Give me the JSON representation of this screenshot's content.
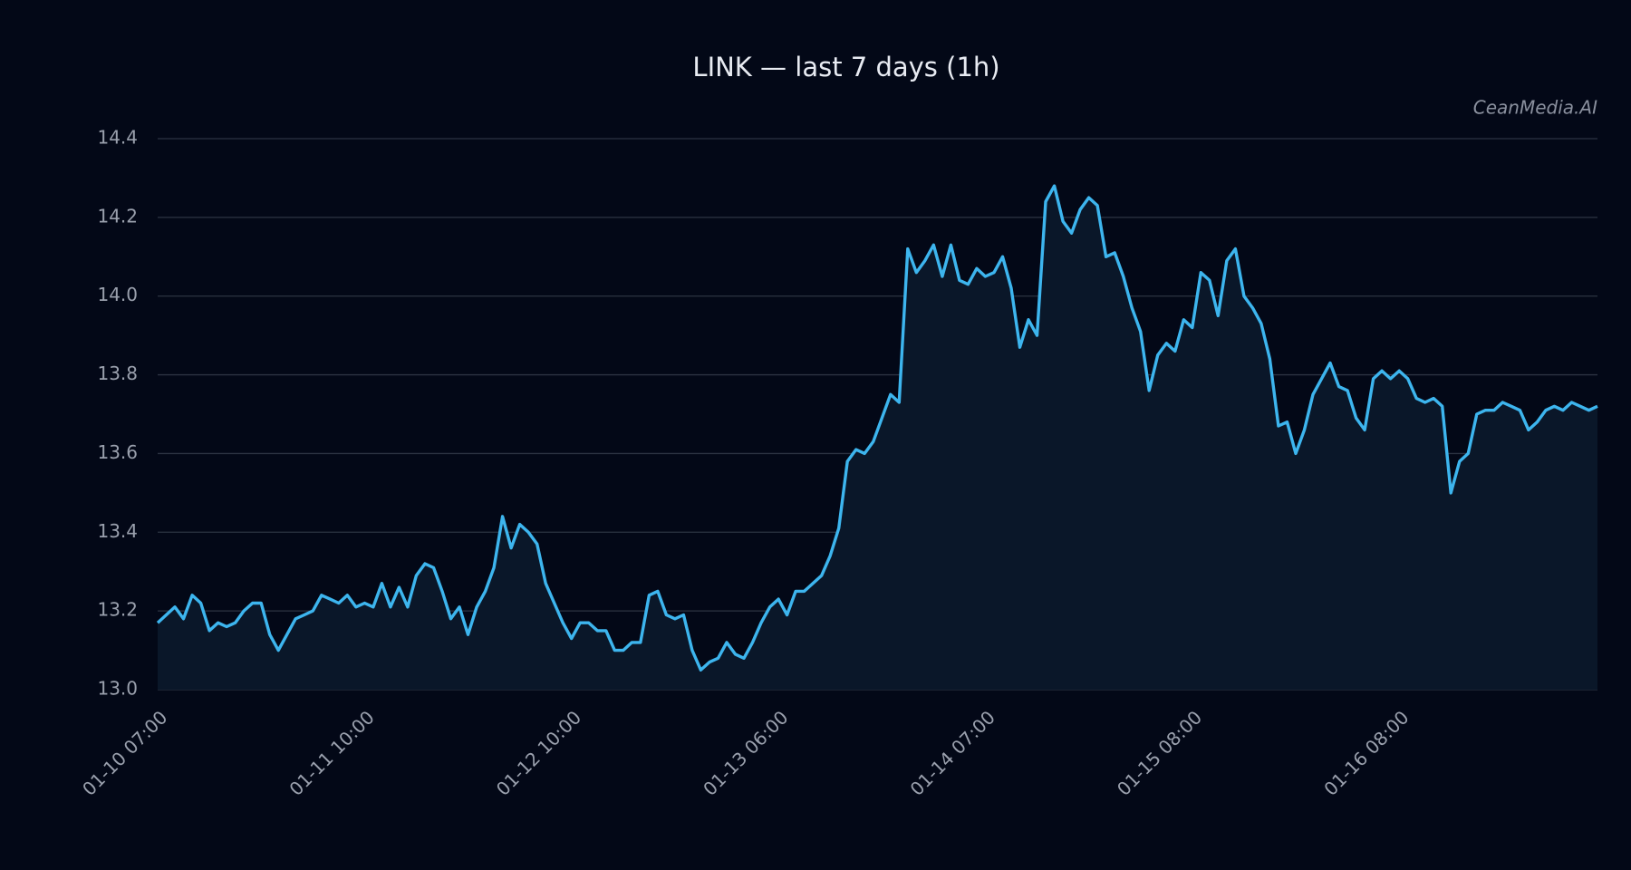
{
  "chart_data": {
    "type": "line",
    "title": "LINK — last 7 days (1h)",
    "watermark": "CeanMedia.AI",
    "categories": [
      "01-10 07:00",
      null,
      null,
      null,
      null,
      null,
      null,
      null,
      null,
      null,
      null,
      null,
      null,
      null,
      null,
      null,
      null,
      null,
      null,
      null,
      null,
      null,
      null,
      null,
      "01-11 10:00",
      null,
      null,
      null,
      null,
      null,
      null,
      null,
      null,
      null,
      null,
      null,
      null,
      null,
      null,
      null,
      null,
      null,
      null,
      null,
      null,
      null,
      null,
      null,
      "01-12 10:00",
      null,
      null,
      null,
      null,
      null,
      null,
      null,
      null,
      null,
      null,
      null,
      null,
      null,
      null,
      null,
      null,
      null,
      null,
      null,
      null,
      null,
      null,
      null,
      "01-13 06:00",
      null,
      null,
      null,
      null,
      null,
      null,
      null,
      null,
      null,
      null,
      null,
      null,
      null,
      null,
      null,
      null,
      null,
      null,
      null,
      null,
      null,
      null,
      null,
      "01-14 07:00",
      null,
      null,
      null,
      null,
      null,
      null,
      null,
      null,
      null,
      null,
      null,
      null,
      null,
      null,
      null,
      null,
      null,
      null,
      null,
      null,
      null,
      null,
      null,
      "01-15 08:00",
      null,
      null,
      null,
      null,
      null,
      null,
      null,
      null,
      null,
      null,
      null,
      null,
      null,
      null,
      null,
      null,
      null,
      null,
      null,
      null,
      null,
      null,
      null,
      "01-16 08:00",
      null,
      null,
      null,
      null,
      null,
      null,
      null,
      null,
      null,
      null,
      null,
      null,
      null,
      null,
      null,
      null,
      null,
      null,
      null,
      null,
      null,
      null,
      null
    ],
    "values": [
      13.17,
      13.19,
      13.21,
      13.18,
      13.24,
      13.22,
      13.15,
      13.17,
      13.16,
      13.17,
      13.2,
      13.22,
      13.22,
      13.14,
      13.1,
      13.14,
      13.18,
      13.19,
      13.2,
      13.24,
      13.23,
      13.22,
      13.24,
      13.21,
      13.22,
      13.21,
      13.27,
      13.21,
      13.26,
      13.21,
      13.29,
      13.32,
      13.31,
      13.25,
      13.18,
      13.21,
      13.14,
      13.21,
      13.25,
      13.31,
      13.44,
      13.36,
      13.42,
      13.4,
      13.37,
      13.27,
      13.22,
      13.17,
      13.13,
      13.17,
      13.17,
      13.15,
      13.15,
      13.1,
      13.1,
      13.12,
      13.12,
      13.24,
      13.25,
      13.19,
      13.18,
      13.19,
      13.1,
      13.05,
      13.07,
      13.08,
      13.12,
      13.09,
      13.08,
      13.12,
      13.17,
      13.21,
      13.23,
      13.19,
      13.25,
      13.25,
      13.27,
      13.29,
      13.34,
      13.41,
      13.58,
      13.61,
      13.6,
      13.63,
      13.69,
      13.75,
      13.73,
      14.12,
      14.06,
      14.09,
      14.13,
      14.05,
      14.13,
      14.04,
      14.03,
      14.07,
      14.05,
      14.06,
      14.1,
      14.02,
      13.87,
      13.94,
      13.9,
      14.24,
      14.28,
      14.19,
      14.16,
      14.22,
      14.25,
      14.23,
      14.1,
      14.11,
      14.05,
      13.97,
      13.91,
      13.76,
      13.85,
      13.88,
      13.86,
      13.94,
      13.92,
      14.06,
      14.04,
      13.95,
      14.09,
      14.12,
      14.0,
      13.97,
      13.93,
      13.84,
      13.67,
      13.68,
      13.6,
      13.66,
      13.75,
      13.79,
      13.83,
      13.77,
      13.76,
      13.69,
      13.66,
      13.79,
      13.81,
      13.79,
      13.81,
      13.79,
      13.74,
      13.73,
      13.74,
      13.72,
      13.5,
      13.58,
      13.6,
      13.7,
      13.71,
      13.71,
      13.73,
      13.72,
      13.71,
      13.66,
      13.68,
      13.71,
      13.72,
      13.71,
      13.73,
      13.72,
      13.71,
      13.72
    ],
    "color": "#3db5ee",
    "fill_color": "#0a1729",
    "ylim": [
      13.0,
      14.4
    ],
    "yticks": [
      {
        "value": 13.0,
        "label": "13.0"
      },
      13.2,
      13.4,
      13.6,
      13.8,
      {
        "value": 14.0,
        "label": "14.0"
      },
      14.2,
      14.4
    ],
    "grid": true
  }
}
